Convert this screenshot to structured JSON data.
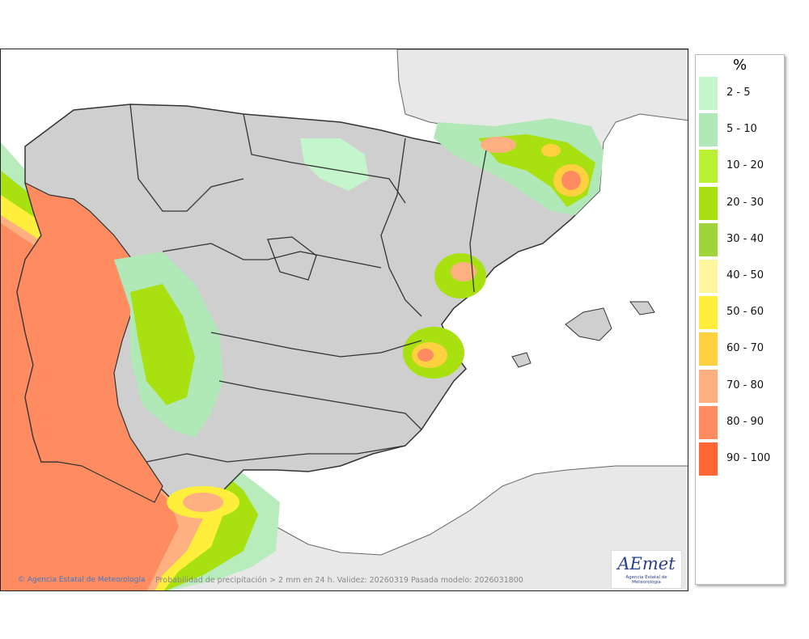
{
  "map": {
    "credit": "Agencia Estatal de Meteorología",
    "caption": "Probabilidad de precipitación > 2 mm en 24 h. Validez: 20260319 Pasada modelo: 2026031800",
    "logo": {
      "word": "AEmet",
      "subtitle": "Agencia Estatal de Meteorología"
    }
  },
  "legend": {
    "title": "%",
    "items": [
      {
        "label": "2 - 5",
        "color": "#c4f5cc"
      },
      {
        "label": "5 - 10",
        "color": "#b0e8b8"
      },
      {
        "label": "10 - 20",
        "color": "#baf033"
      },
      {
        "label": "20 - 30",
        "color": "#a8e010"
      },
      {
        "label": "30 - 40",
        "color": "#9fd43a"
      },
      {
        "label": "40 - 50",
        "color": "#fff59e"
      },
      {
        "label": "50 - 60",
        "color": "#ffee3c"
      },
      {
        "label": "60 - 70",
        "color": "#ffd040"
      },
      {
        "label": "70 - 80",
        "color": "#ffb080"
      },
      {
        "label": "80 - 90",
        "color": "#ff8c60"
      },
      {
        "label": "90 - 100",
        "color": "#ff6535"
      }
    ]
  }
}
